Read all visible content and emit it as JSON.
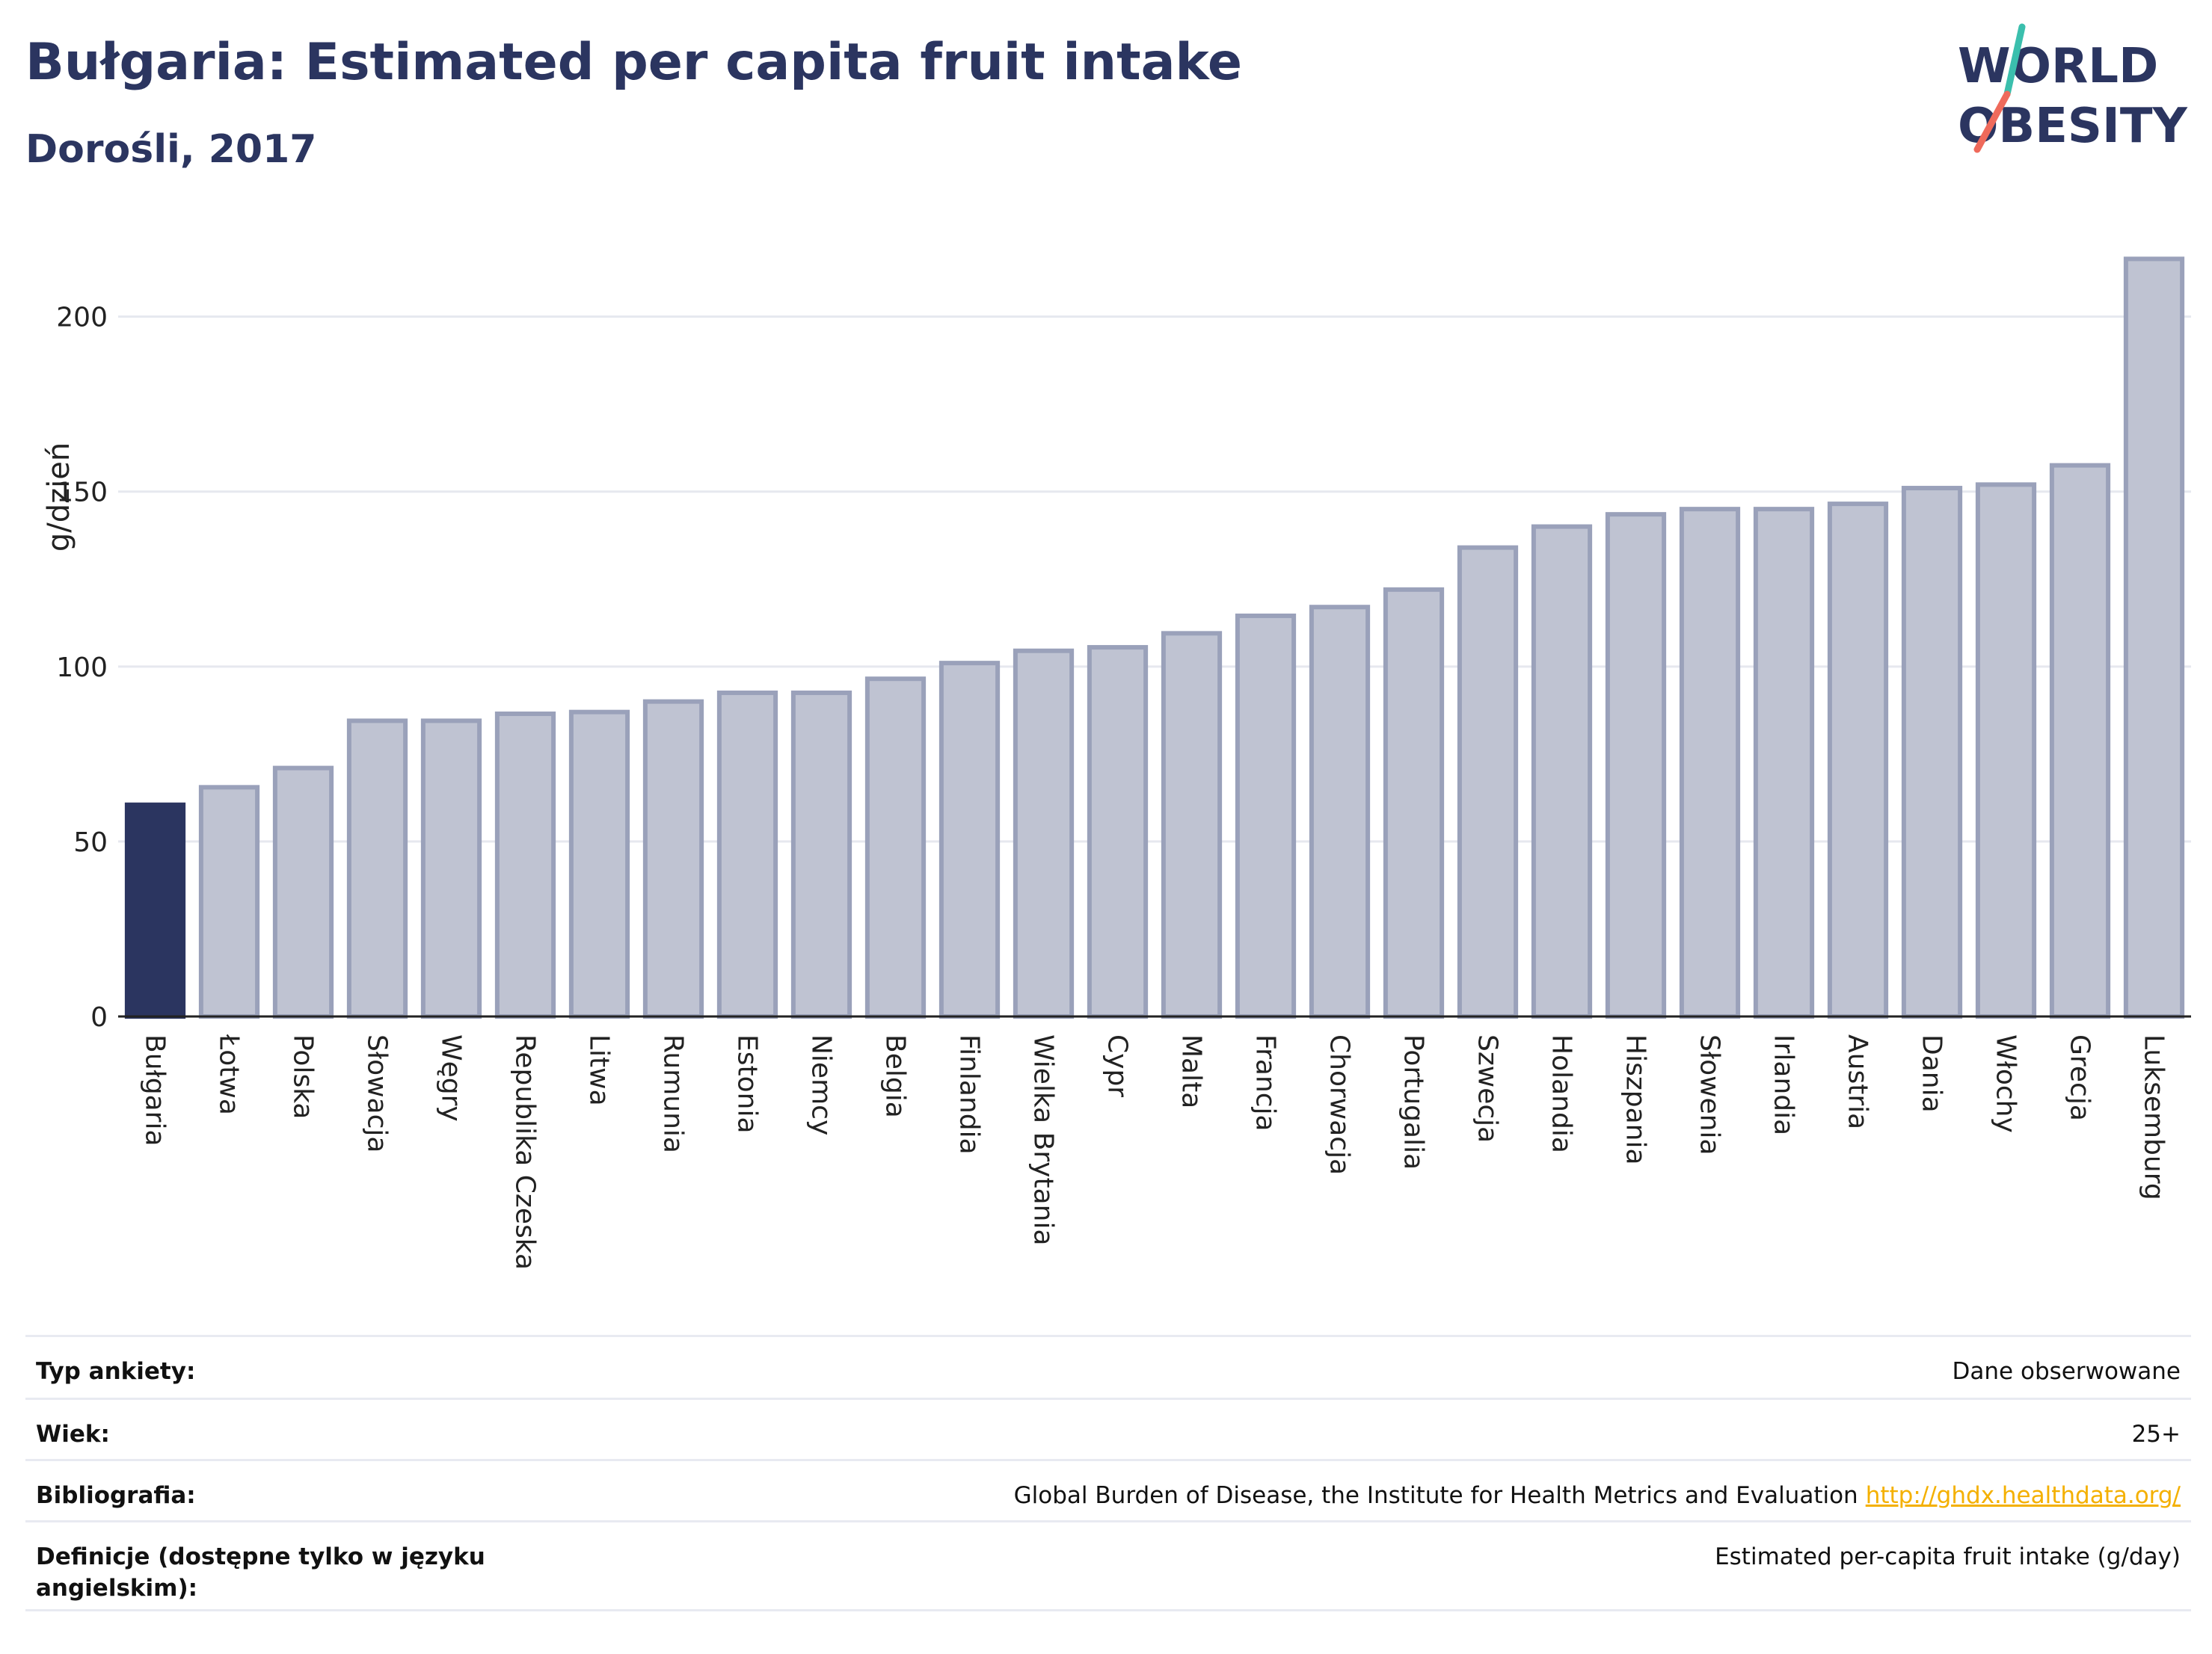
{
  "header": {
    "title": "Bułgaria: Estimated per capita fruit intake",
    "subtitle": "Dorośli, 2017"
  },
  "logo": {
    "line1": "WORLD",
    "line2": "OBESITY",
    "colors": [
      "#2b3560",
      "#3bbfad",
      "#ef6a5b"
    ]
  },
  "chart_data": {
    "type": "bar",
    "ylabel": "g/dzień",
    "xlabel": "",
    "ylim": [
      0,
      220
    ],
    "yticks": [
      0,
      50,
      100,
      150,
      200
    ],
    "grid": true,
    "highlight_color": "#2b3560",
    "bar_color": "#bfc3d2",
    "bar_stroke": "#9aa1ba",
    "categories": [
      "Bułgaria",
      "Łotwa",
      "Polska",
      "Słowacja",
      "Węgry",
      "Republika Czeska",
      "Litwa",
      "Rumunia",
      "Estonia",
      "Niemcy",
      "Belgia",
      "Finlandia",
      "Wielka Brytania",
      "Cypr",
      "Malta",
      "Francja",
      "Chorwacja",
      "Portugalia",
      "Szwecja",
      "Holandia",
      "Hiszpania",
      "Słowenia",
      "Irlandia",
      "Austria",
      "Dania",
      "Włochy",
      "Grecja",
      "Luksemburg"
    ],
    "values": [
      60.5,
      65.5,
      71,
      84.5,
      84.5,
      86.5,
      87,
      90,
      92.5,
      92.5,
      96.5,
      101,
      104.5,
      105.5,
      109.5,
      114.5,
      117,
      122,
      134,
      140,
      143.5,
      145,
      145,
      146.5,
      151,
      152,
      157.5,
      216.5
    ],
    "highlight_index": 0
  },
  "meta": {
    "rows": [
      {
        "label": "Typ ankiety:",
        "value": "Dane obserwowane"
      },
      {
        "label": "Wiek:",
        "value": "25+"
      },
      {
        "label": "Bibliografia:",
        "value": "Global Burden of Disease, the Institute for Health Metrics and Evaluation",
        "link": "http://ghdx.healthdata.org/"
      },
      {
        "label": "Definicje (dostępne tylko w języku angielskim):",
        "value": "Estimated per-capita fruit intake (g/day)"
      }
    ]
  }
}
